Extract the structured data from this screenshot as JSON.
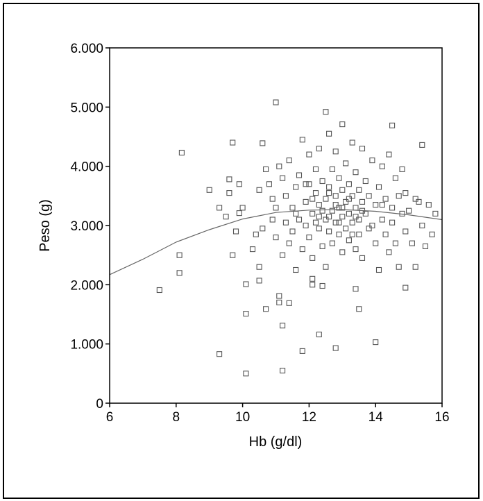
{
  "chart_data": {
    "type": "scatter",
    "title": "",
    "xlabel": "Hb (g/dl)",
    "ylabel": "Peso (g)",
    "xlim": [
      6,
      16
    ],
    "ylim": [
      0,
      6000
    ],
    "x_ticks": [
      6,
      8,
      10,
      12,
      14,
      16
    ],
    "x_tick_labels": [
      "6",
      "8",
      "10",
      "12",
      "14",
      "16"
    ],
    "y_ticks": [
      0,
      1000,
      2000,
      3000,
      4000,
      5000,
      6000
    ],
    "y_tick_labels": [
      "0",
      "1.000",
      "2.000",
      "3.000",
      "4.000",
      "5.000",
      "6.000"
    ],
    "grid": false,
    "marker": "open-square",
    "marker_color": "#555555",
    "line_color": "#666666",
    "points": [
      [
        7.5,
        1910
      ],
      [
        8.17,
        4230
      ],
      [
        8.1,
        2500
      ],
      [
        8.1,
        2200
      ],
      [
        9.0,
        3600
      ],
      [
        9.7,
        4400
      ],
      [
        9.3,
        830
      ],
      [
        10.1,
        500
      ],
      [
        10.1,
        1510
      ],
      [
        10.1,
        2010
      ],
      [
        9.7,
        2500
      ],
      [
        11.0,
        5080
      ],
      [
        10.6,
        4390
      ],
      [
        11.2,
        550
      ],
      [
        11.2,
        1310
      ],
      [
        11.8,
        880
      ],
      [
        12.3,
        1160
      ],
      [
        12.8,
        930
      ],
      [
        14.0,
        1030
      ],
      [
        12.5,
        4920
      ],
      [
        13.0,
        4710
      ],
      [
        14.5,
        4690
      ],
      [
        15.4,
        4360
      ],
      [
        15.8,
        3200
      ],
      [
        15.7,
        2850
      ],
      [
        14.9,
        1950
      ],
      [
        15.2,
        2300
      ],
      [
        13.5,
        1590
      ],
      [
        10.7,
        1590
      ],
      [
        11.1,
        1700
      ],
      [
        11.4,
        1690
      ],
      [
        11.1,
        1810
      ],
      [
        10.5,
        2070
      ],
      [
        12.1,
        2000
      ],
      [
        12.4,
        1980
      ],
      [
        13.4,
        1930
      ],
      [
        12.1,
        2100
      ],
      [
        9.3,
        3300
      ],
      [
        9.5,
        3150
      ],
      [
        9.6,
        3550
      ],
      [
        9.6,
        3780
      ],
      [
        9.9,
        3700
      ],
      [
        10.0,
        3300
      ],
      [
        9.8,
        2900
      ],
      [
        9.9,
        3210
      ],
      [
        10.3,
        2600
      ],
      [
        10.5,
        2300
      ],
      [
        10.4,
        2850
      ],
      [
        10.6,
        2950
      ],
      [
        10.5,
        3600
      ],
      [
        10.7,
        3950
      ],
      [
        10.8,
        3700
      ],
      [
        10.9,
        3450
      ],
      [
        10.9,
        3100
      ],
      [
        11.0,
        2800
      ],
      [
        11.0,
        3300
      ],
      [
        11.1,
        4000
      ],
      [
        11.2,
        3800
      ],
      [
        11.2,
        2500
      ],
      [
        11.3,
        3050
      ],
      [
        11.3,
        3500
      ],
      [
        11.4,
        2700
      ],
      [
        11.4,
        4100
      ],
      [
        11.5,
        3300
      ],
      [
        11.5,
        2900
      ],
      [
        11.6,
        3650
      ],
      [
        11.6,
        2250
      ],
      [
        11.7,
        3100
      ],
      [
        11.7,
        3850
      ],
      [
        11.8,
        4450
      ],
      [
        11.8,
        2600
      ],
      [
        11.9,
        3400
      ],
      [
        11.9,
        3000
      ],
      [
        12.0,
        3700
      ],
      [
        12.0,
        2800
      ],
      [
        12.0,
        4200
      ],
      [
        12.1,
        3200
      ],
      [
        12.1,
        2450
      ],
      [
        12.2,
        3550
      ],
      [
        12.2,
        3950
      ],
      [
        12.3,
        2950
      ],
      [
        12.3,
        3350
      ],
      [
        12.3,
        4300
      ],
      [
        12.4,
        2650
      ],
      [
        12.4,
        3750
      ],
      [
        12.5,
        3100
      ],
      [
        12.5,
        3450
      ],
      [
        12.5,
        2300
      ],
      [
        12.6,
        4550
      ],
      [
        12.6,
        2900
      ],
      [
        12.6,
        3650
      ],
      [
        12.7,
        3250
      ],
      [
        12.7,
        3950
      ],
      [
        12.7,
        2700
      ],
      [
        12.8,
        3050
      ],
      [
        12.8,
        3500
      ],
      [
        12.8,
        4250
      ],
      [
        12.9,
        2850
      ],
      [
        12.9,
        3300
      ],
      [
        12.9,
        3800
      ],
      [
        13.0,
        2550
      ],
      [
        13.0,
        3150
      ],
      [
        13.0,
        3600
      ],
      [
        13.1,
        4050
      ],
      [
        13.1,
        2950
      ],
      [
        13.1,
        3400
      ],
      [
        13.2,
        3200
      ],
      [
        13.2,
        2750
      ],
      [
        13.2,
        3700
      ],
      [
        13.3,
        3050
      ],
      [
        13.3,
        3500
      ],
      [
        13.3,
        4400
      ],
      [
        13.4,
        2600
      ],
      [
        13.4,
        3300
      ],
      [
        13.4,
        3900
      ],
      [
        13.5,
        3100
      ],
      [
        13.5,
        3600
      ],
      [
        13.5,
        2850
      ],
      [
        13.6,
        4300
      ],
      [
        13.6,
        3400
      ],
      [
        13.6,
        2450
      ],
      [
        13.7,
        3200
      ],
      [
        13.7,
        3750
      ],
      [
        13.8,
        2950
      ],
      [
        13.8,
        3500
      ],
      [
        13.9,
        4100
      ],
      [
        13.9,
        3000
      ],
      [
        14.0,
        3350
      ],
      [
        14.0,
        2700
      ],
      [
        14.1,
        3650
      ],
      [
        14.1,
        2250
      ],
      [
        14.2,
        3100
      ],
      [
        14.2,
        4000
      ],
      [
        14.3,
        2850
      ],
      [
        14.3,
        3450
      ],
      [
        14.4,
        4200
      ],
      [
        14.4,
        2550
      ],
      [
        14.5,
        3300
      ],
      [
        14.5,
        3050
      ],
      [
        14.6,
        3800
      ],
      [
        14.6,
        2700
      ],
      [
        14.7,
        3500
      ],
      [
        14.7,
        2300
      ],
      [
        14.8,
        3950
      ],
      [
        14.8,
        3200
      ],
      [
        14.9,
        2900
      ],
      [
        14.9,
        3550
      ],
      [
        15.0,
        3250
      ],
      [
        15.1,
        2700
      ],
      [
        15.2,
        3450
      ],
      [
        15.3,
        3400
      ],
      [
        15.4,
        3000
      ],
      [
        15.5,
        2650
      ],
      [
        15.6,
        3350
      ],
      [
        12.2,
        3050
      ],
      [
        12.6,
        3150
      ],
      [
        13.0,
        3300
      ],
      [
        13.4,
        3150
      ],
      [
        12.4,
        3250
      ],
      [
        12.8,
        3350
      ],
      [
        13.2,
        3450
      ],
      [
        12.9,
        3050
      ],
      [
        13.3,
        2850
      ],
      [
        12.1,
        3450
      ],
      [
        11.6,
        3200
      ],
      [
        12.6,
        3550
      ],
      [
        13.6,
        3250
      ],
      [
        11.9,
        3700
      ],
      [
        14.2,
        3350
      ],
      [
        12.3,
        3150
      ]
    ],
    "fit_curve": {
      "x": [
        6,
        7,
        8,
        9,
        10,
        11,
        12,
        13,
        14,
        15,
        16
      ],
      "y": [
        2170,
        2430,
        2720,
        2930,
        3110,
        3220,
        3260,
        3270,
        3240,
        3180,
        3100
      ]
    }
  }
}
